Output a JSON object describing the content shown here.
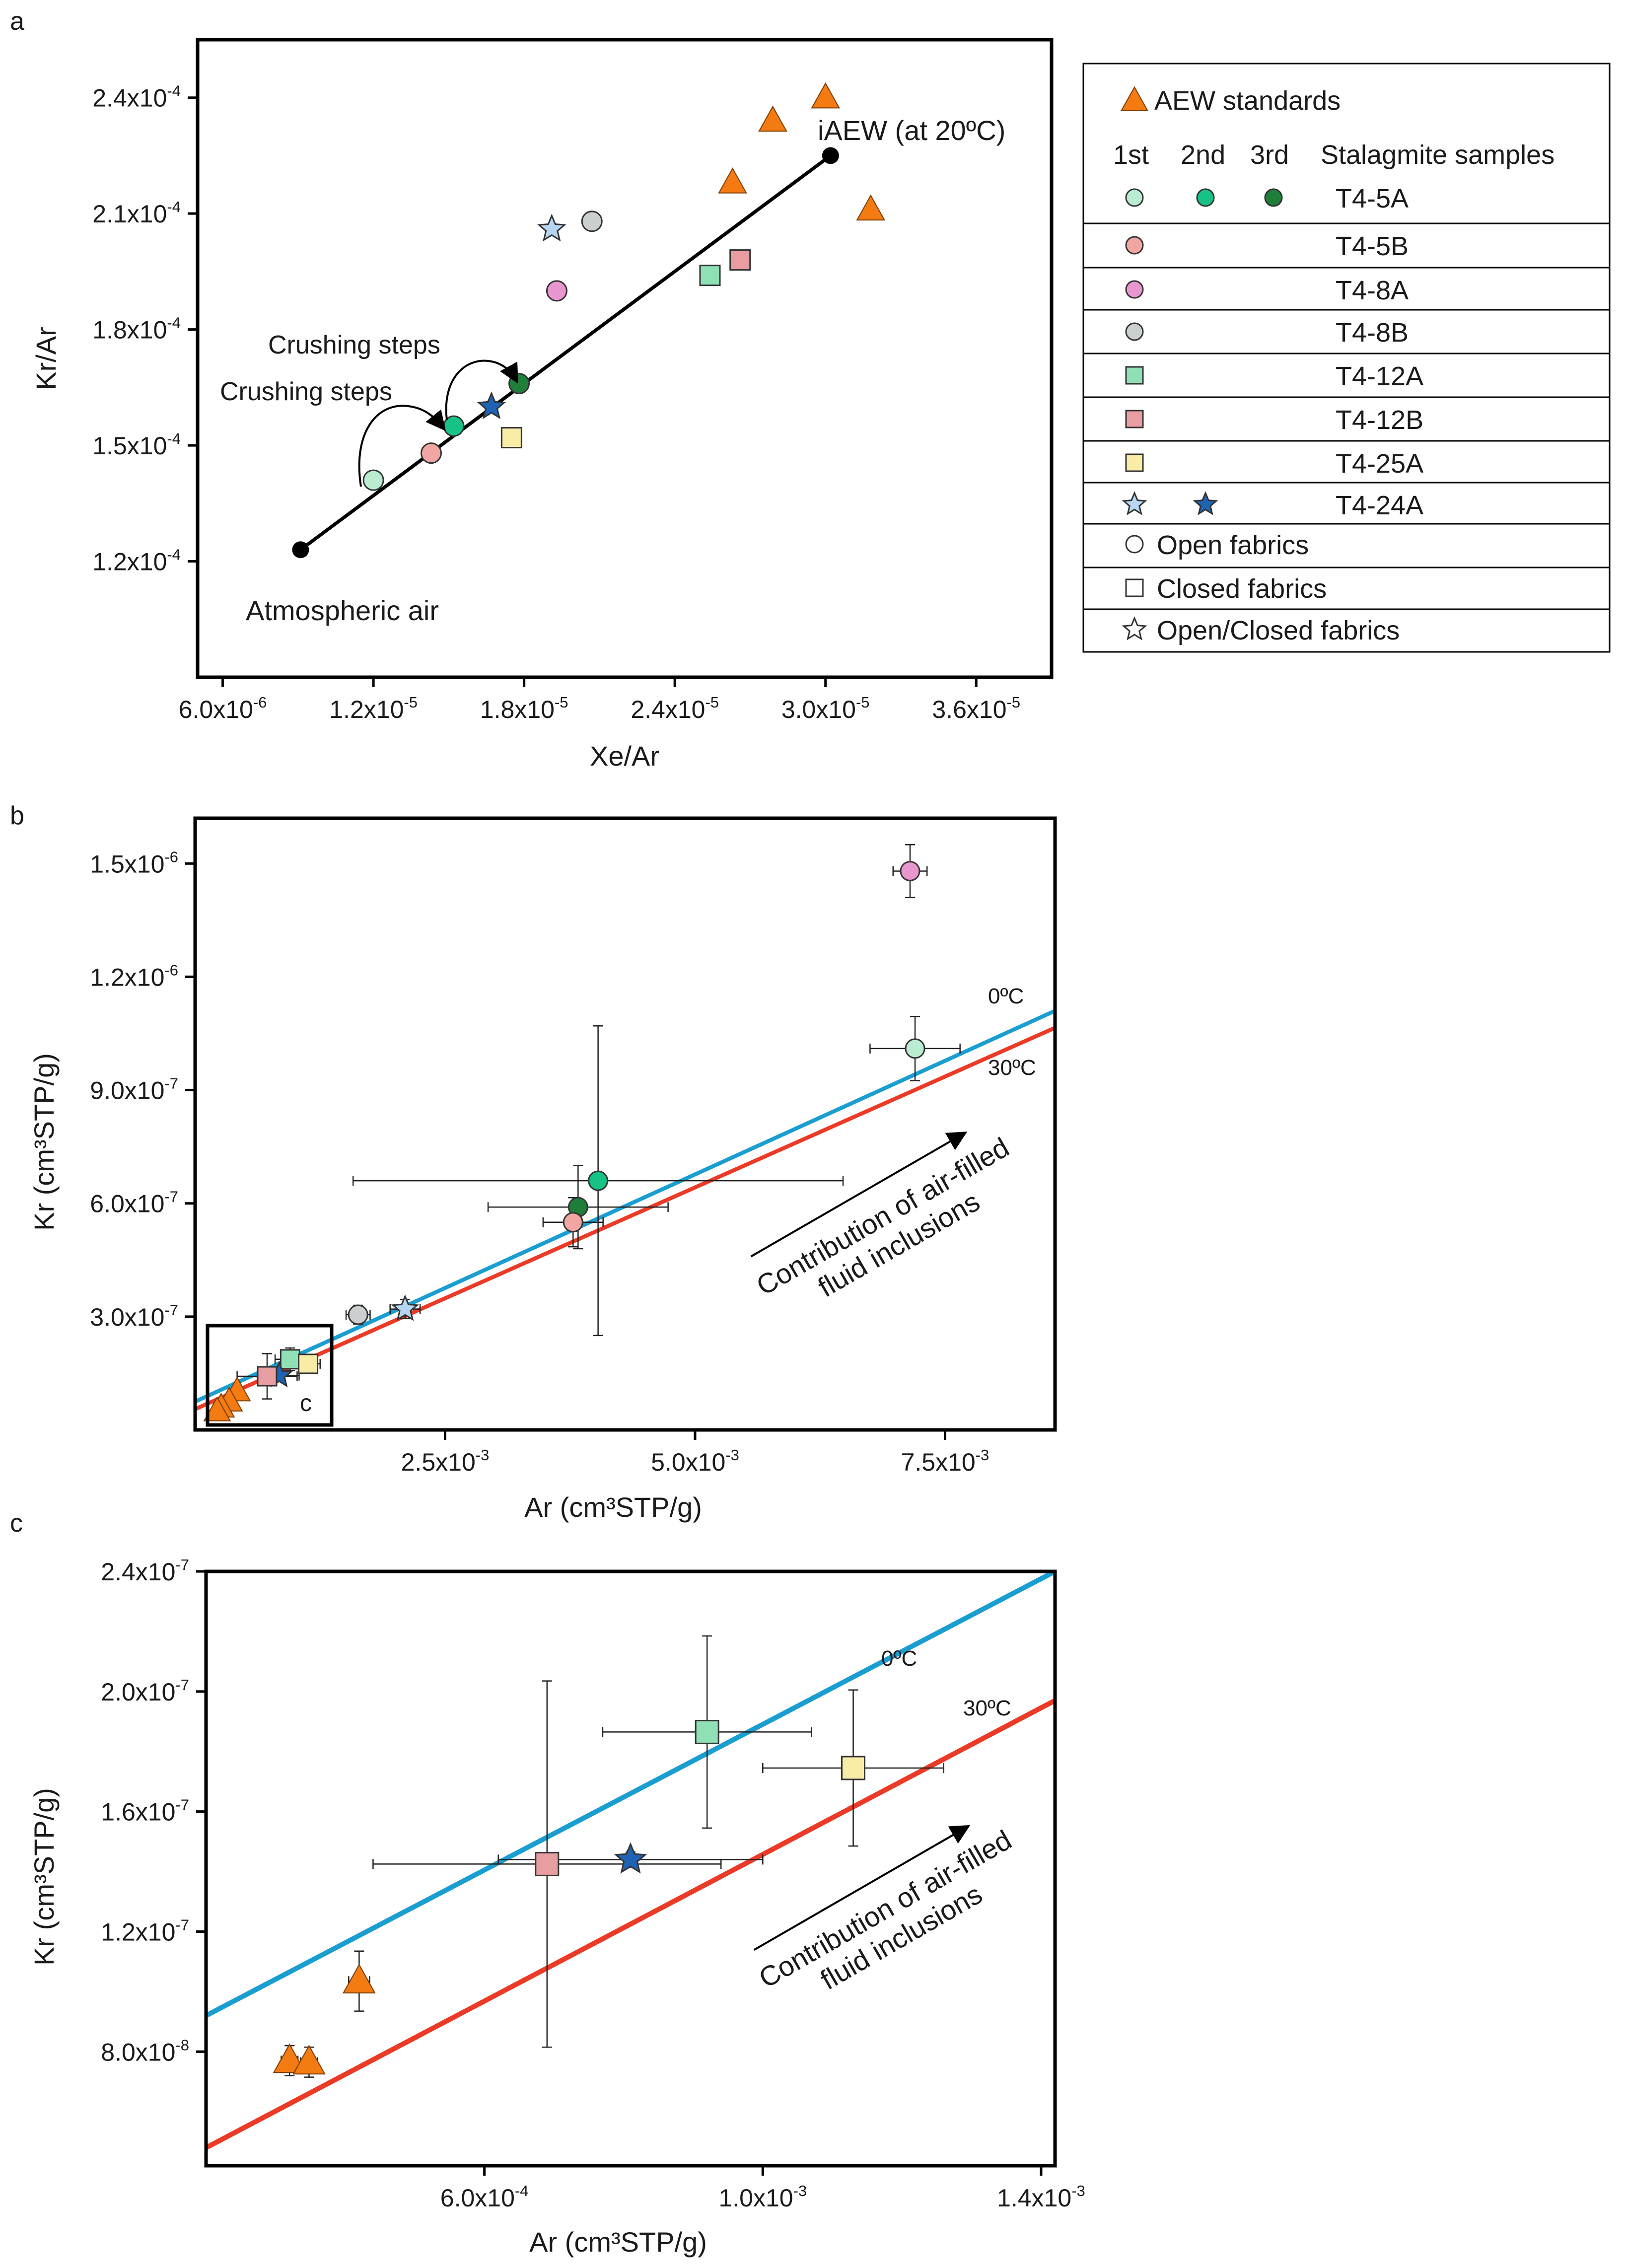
{
  "colors": {
    "light_green": "#b9ecd0",
    "mid_green": "#16c384",
    "dark_green": "#1f7f3a",
    "pink": "#f2a6a3",
    "magenta": "#e896cf",
    "gray": "#cbcfcf",
    "mint": "#8fe1b5",
    "rose": "#e89ea1",
    "yellow": "#f8eca6",
    "light_blue": "#b6d6f2",
    "blue": "#1f63b5",
    "orange": "#f47b12",
    "cyan_line": "#1a9ed1",
    "red_line": "#eb3a26",
    "black": "#000000"
  },
  "legend": {
    "aew_label": "AEW standards",
    "col_1st": "1st",
    "col_2nd": "2nd",
    "col_3rd": "3rd",
    "col_samples": "Stalagmite samples",
    "rows": [
      {
        "label": "T4-5A"
      },
      {
        "label": "T4-5B"
      },
      {
        "label": "T4-8A"
      },
      {
        "label": "T4-8B"
      },
      {
        "label": "T4-12A"
      },
      {
        "label": "T4-12B"
      },
      {
        "label": "T4-25A"
      },
      {
        "label": "T4-24A"
      }
    ],
    "fabrics": [
      {
        "label": "Open fabrics"
      },
      {
        "label": "Closed fabrics"
      },
      {
        "label": "Open/Closed fabrics"
      }
    ]
  },
  "chart_data": [
    {
      "panel": "a",
      "type": "scatter",
      "xlabel": "Xe/Ar",
      "ylabel": "Kr/Ar",
      "xlim": [
        5e-06,
        3.9e-05
      ],
      "ylim": [
        9e-05,
        0.000255
      ],
      "xticks": [
        {
          "v": 6e-06,
          "m": "6.0x10",
          "e": "-6"
        },
        {
          "v": 1.2e-05,
          "m": "1.2x10",
          "e": "-5"
        },
        {
          "v": 1.8e-05,
          "m": "1.8x10",
          "e": "-5"
        },
        {
          "v": 2.4e-05,
          "m": "2.4x10",
          "e": "-5"
        },
        {
          "v": 3e-05,
          "m": "3.0x10",
          "e": "-5"
        },
        {
          "v": 3.6e-05,
          "m": "3.6x10",
          "e": "-5"
        }
      ],
      "yticks": [
        {
          "v": 0.00012,
          "m": "1.2x10",
          "e": "-4"
        },
        {
          "v": 0.00015,
          "m": "1.5x10",
          "e": "-4"
        },
        {
          "v": 0.00018,
          "m": "1.8x10",
          "e": "-4"
        },
        {
          "v": 0.00021,
          "m": "2.1x10",
          "e": "-4"
        },
        {
          "v": 0.00024,
          "m": "2.4x10",
          "e": "-4"
        }
      ],
      "air_line": {
        "x": [
          9.1e-06,
          3.02e-05
        ],
        "y": [
          0.000123,
          0.000225
        ]
      },
      "labels": {
        "atmospheric_air": "Atmospheric air",
        "iaew": "iAEW (at 20ºC)",
        "crushing_steps": "Crushing steps"
      },
      "points": [
        {
          "id": "T4-5A 1st",
          "x": 1.2e-05,
          "y": 0.000141,
          "shape": "circle",
          "color": "light_green"
        },
        {
          "id": "T4-5A 2nd",
          "x": 1.52e-05,
          "y": 0.000155,
          "shape": "circle",
          "color": "mid_green"
        },
        {
          "id": "T4-5A 3rd",
          "x": 1.78e-05,
          "y": 0.000166,
          "shape": "circle",
          "color": "dark_green"
        },
        {
          "id": "T4-5B",
          "x": 1.43e-05,
          "y": 0.000148,
          "shape": "circle",
          "color": "pink"
        },
        {
          "id": "T4-8A",
          "x": 1.93e-05,
          "y": 0.00019,
          "shape": "circle",
          "color": "magenta"
        },
        {
          "id": "T4-8B",
          "x": 2.07e-05,
          "y": 0.000208,
          "shape": "circle",
          "color": "gray"
        },
        {
          "id": "T4-12A",
          "x": 2.54e-05,
          "y": 0.000194,
          "shape": "square",
          "color": "mint"
        },
        {
          "id": "T4-12B",
          "x": 2.66e-05,
          "y": 0.000198,
          "shape": "square",
          "color": "rose"
        },
        {
          "id": "T4-25A",
          "x": 1.75e-05,
          "y": 0.000152,
          "shape": "square",
          "color": "yellow"
        },
        {
          "id": "T4-24A 1st",
          "x": 1.91e-05,
          "y": 0.000206,
          "shape": "star",
          "color": "light_blue"
        },
        {
          "id": "T4-24A 2nd",
          "x": 1.67e-05,
          "y": 0.00016,
          "shape": "star",
          "color": "blue"
        },
        {
          "id": "AEW 1",
          "x": 3e-05,
          "y": 0.00024,
          "shape": "triangle",
          "color": "orange"
        },
        {
          "id": "AEW 2",
          "x": 2.79e-05,
          "y": 0.000234,
          "shape": "triangle",
          "color": "orange"
        },
        {
          "id": "AEW 3",
          "x": 2.63e-05,
          "y": 0.000218,
          "shape": "triangle",
          "color": "orange"
        },
        {
          "id": "AEW 4",
          "x": 3.18e-05,
          "y": 0.000211,
          "shape": "triangle",
          "color": "orange"
        }
      ]
    },
    {
      "panel": "b",
      "type": "scatter",
      "xlabel": "Ar (cm³STP/g)",
      "ylabel": "Kr (cm³STP/g)",
      "xlim": [
        0.0,
        0.0086
      ],
      "ylim": [
        0.0,
        1.62e-06
      ],
      "xticks": [
        {
          "v": 0.0025,
          "m": "2.5x10",
          "e": "-3"
        },
        {
          "v": 0.005,
          "m": "5.0x10",
          "e": "-3"
        },
        {
          "v": 0.0075,
          "m": "7.5x10",
          "e": "-3"
        }
      ],
      "yticks": [
        {
          "v": 3e-07,
          "m": "3.0x10",
          "e": "-7"
        },
        {
          "v": 6e-07,
          "m": "6.0x10",
          "e": "-7"
        },
        {
          "v": 9e-07,
          "m": "9.0x10",
          "e": "-7"
        },
        {
          "v": 1.2e-06,
          "m": "1.2x10",
          "e": "-6"
        },
        {
          "v": 1.5e-06,
          "m": "1.5x10",
          "e": "-6"
        }
      ],
      "lines": [
        {
          "name": "0ºC",
          "color": "cyan_line",
          "x": [
            0.0,
            0.0086
          ],
          "y": [
            7.5e-08,
            1.11e-06
          ]
        },
        {
          "name": "30ºC",
          "color": "red_line",
          "x": [
            0.0,
            0.0086
          ],
          "y": [
            5.5e-08,
            1.065e-06
          ]
        }
      ],
      "arrow_text": [
        "Contribution of air-filled",
        "fluid inclusions"
      ],
      "inset_label": "c",
      "points": [
        {
          "id": "T4-8A",
          "x": 0.00715,
          "y": 1.48e-06,
          "xerr": 0.00017,
          "yerr": 7e-08,
          "shape": "circle",
          "color": "magenta"
        },
        {
          "id": "T4-5A 1st",
          "x": 0.0072,
          "y": 1.01e-06,
          "xerr": 0.00045,
          "yerr": 8.5e-08,
          "shape": "circle",
          "color": "light_green"
        },
        {
          "id": "T4-5A 2nd",
          "x": 0.00403,
          "y": 6.6e-07,
          "xerr": 0.00245,
          "yerr": 4.1e-07,
          "shape": "circle",
          "color": "mid_green"
        },
        {
          "id": "T4-5A 3rd",
          "x": 0.00383,
          "y": 5.9e-07,
          "xerr": 0.0009,
          "yerr": 1.1e-07,
          "shape": "circle",
          "color": "dark_green"
        },
        {
          "id": "T4-5B",
          "x": 0.00378,
          "y": 5.5e-07,
          "xerr": 0.0003,
          "yerr": 6.5e-08,
          "shape": "circle",
          "color": "pink"
        },
        {
          "id": "T4-8B",
          "x": 0.00163,
          "y": 3.05e-07,
          "xerr": 0.00012,
          "yerr": 2.5e-08,
          "shape": "circle",
          "color": "gray"
        },
        {
          "id": "T4-24A 1st",
          "x": 0.0021,
          "y": 3.2e-07,
          "xerr": 0.00015,
          "yerr": 2.5e-08,
          "shape": "star",
          "color": "light_blue"
        },
        {
          "id": "T4-12A",
          "x": 0.00095,
          "y": 1.87e-07,
          "xerr": 0.00015,
          "yerr": 3e-08,
          "shape": "square",
          "color": "mint"
        },
        {
          "id": "T4-25A",
          "x": 0.00113,
          "y": 1.75e-07,
          "xerr": 0.00012,
          "yerr": 2.5e-08,
          "shape": "square",
          "color": "yellow"
        },
        {
          "id": "T4-24A 2nd",
          "x": 0.00084,
          "y": 1.44e-07,
          "xerr": 0.0002,
          "yerr": 4e-09,
          "shape": "star",
          "color": "blue"
        },
        {
          "id": "T4-12B",
          "x": 0.00072,
          "y": 1.42e-07,
          "xerr": 0.0003,
          "yerr": 6e-08,
          "shape": "square",
          "color": "rose"
        },
        {
          "id": "AEW 1",
          "x": 0.00042,
          "y": 1.03e-07,
          "shape": "triangle",
          "color": "orange"
        },
        {
          "id": "AEW 2",
          "x": 0.00034,
          "y": 7.6e-08,
          "shape": "triangle",
          "color": "orange"
        },
        {
          "id": "AEW 3",
          "x": 0.00026,
          "y": 6e-08,
          "shape": "triangle",
          "color": "orange"
        },
        {
          "id": "AEW 4",
          "x": 0.00022,
          "y": 5e-08,
          "shape": "triangle",
          "color": "orange"
        }
      ]
    },
    {
      "panel": "c",
      "type": "scatter",
      "xlabel": "Ar (cm³STP/g)",
      "ylabel": "Kr (cm³STP/g)",
      "xlim": [
        0.0002,
        0.00142
      ],
      "ylim": [
        4.2e-08,
        2.4e-07
      ],
      "xticks": [
        {
          "v": 0.0006,
          "m": "6.0x10",
          "e": "-4"
        },
        {
          "v": 0.001,
          "m": "1.0x10",
          "e": "-3"
        },
        {
          "v": 0.0014,
          "m": "1.4x10",
          "e": "-3"
        }
      ],
      "yticks": [
        {
          "v": 8e-08,
          "m": "8.0x10",
          "e": "-8"
        },
        {
          "v": 1.2e-07,
          "m": "1.2x10",
          "e": "-7"
        },
        {
          "v": 1.6e-07,
          "m": "1.6x10",
          "e": "-7"
        },
        {
          "v": 2e-07,
          "m": "2.0x10",
          "e": "-7"
        },
        {
          "v": 2.4e-07,
          "m": "2.4x10",
          "e": "-7"
        }
      ],
      "lines": [
        {
          "name": "0ºC",
          "color": "cyan_line",
          "x": [
            0.0002,
            0.00142
          ],
          "y": [
            9.2e-08,
            2.4e-07
          ]
        },
        {
          "name": "30ºC",
          "color": "red_line",
          "x": [
            0.0002,
            0.00142
          ],
          "y": [
            4.8e-08,
            1.97e-07
          ]
        }
      ],
      "arrow_text": [
        "Contribution of air-filled",
        "fluid inclusions"
      ],
      "points": [
        {
          "id": "T4-12A",
          "x": 0.00092,
          "y": 1.865e-07,
          "xerr": 0.00015,
          "yerr": 3.2e-08,
          "shape": "square",
          "color": "mint"
        },
        {
          "id": "T4-25A",
          "x": 0.00113,
          "y": 1.745e-07,
          "xerr": 0.00013,
          "yerr": 2.6e-08,
          "shape": "square",
          "color": "yellow"
        },
        {
          "id": "T4-12B",
          "x": 0.00069,
          "y": 1.425e-07,
          "xerr": 0.00025,
          "yerr": 6.1e-08,
          "shape": "square",
          "color": "rose"
        },
        {
          "id": "T4-24A 2nd",
          "x": 0.00081,
          "y": 1.44e-07,
          "xerr": 0.00019,
          "yerr": 2.5e-09,
          "shape": "star",
          "color": "blue"
        },
        {
          "id": "AEW 1",
          "x": 0.00042,
          "y": 1.035e-07,
          "xerr": 1.5e-05,
          "yerr": 1e-08,
          "shape": "triangle",
          "color": "orange"
        },
        {
          "id": "AEW 2",
          "x": 0.00032,
          "y": 7.7e-08,
          "xerr": 1.2e-05,
          "yerr": 5e-09,
          "shape": "triangle",
          "color": "orange"
        },
        {
          "id": "AEW 3",
          "x": 0.000348,
          "y": 7.65e-08,
          "xerr": 1.2e-05,
          "yerr": 5e-09,
          "shape": "triangle",
          "color": "orange"
        }
      ]
    }
  ],
  "panel_letters": [
    "a",
    "b",
    "c"
  ]
}
